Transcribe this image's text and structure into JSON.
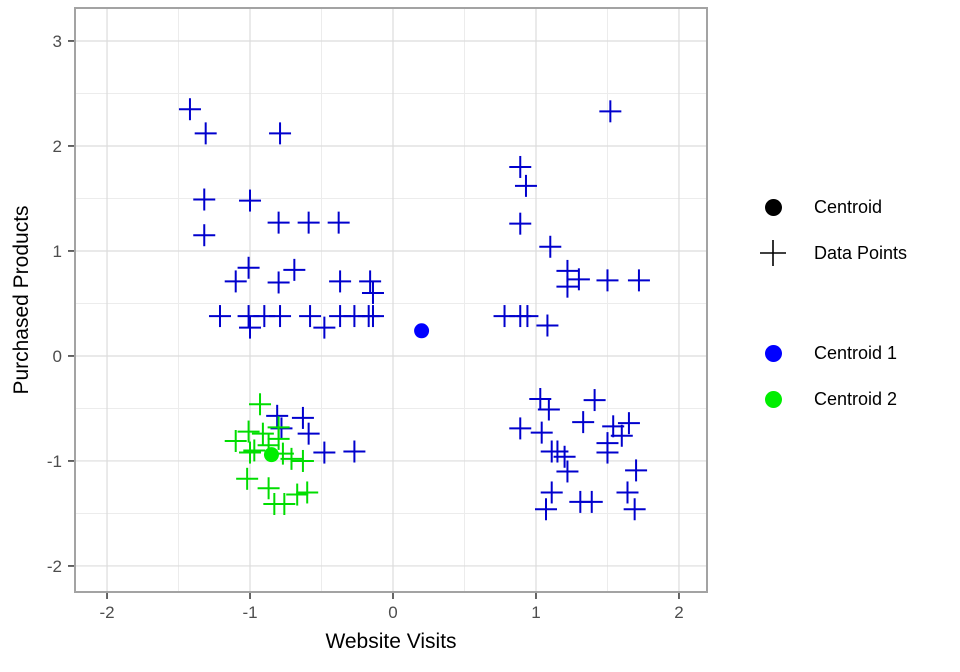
{
  "chart_data": {
    "type": "scatter",
    "title": "",
    "xlabel": "Website Visits",
    "ylabel": "Purchased Products",
    "x_domain": [
      -2.224,
      2.196
    ],
    "y_domain": [
      -2.248,
      3.314
    ],
    "x_major_ticks": [
      -2,
      -1,
      0,
      1,
      2
    ],
    "x_tick_labels": [
      "-2",
      "-1",
      "0",
      "1",
      "2"
    ],
    "x_minor_ticks": [
      -1.5,
      -0.5,
      0.5,
      1.5
    ],
    "y_major_ticks": [
      -2,
      -1,
      0,
      1,
      2,
      3
    ],
    "y_tick_labels": [
      "-2",
      "-1",
      "0",
      "1",
      "2",
      "3"
    ],
    "y_minor_ticks": [
      -1.5,
      -0.5,
      0.5,
      1.5,
      2.5
    ],
    "grid": true,
    "legend_position": "right",
    "colors": {
      "cluster1": "#0000CD",
      "cluster2": "#00DD00",
      "centroid1": "#0000FF",
      "centroid2": "#00EE00",
      "legend_black": "#000000",
      "grid_major": "#DCDCDC",
      "grid_minor": "#ECECEC",
      "panel_border": "#A3A3A3",
      "tick": "#333333",
      "tick_label": "#4D4D4D"
    },
    "series": [
      {
        "name": "Data Points cluster 1",
        "shape": "cross",
        "color_key": "cluster1",
        "points": [
          [
            -1.42,
            2.35
          ],
          [
            -1.31,
            2.12
          ],
          [
            -0.79,
            2.12
          ],
          [
            -1.32,
            1.49
          ],
          [
            -1.0,
            1.48
          ],
          [
            -1.32,
            1.15
          ],
          [
            -0.8,
            1.27
          ],
          [
            -0.59,
            1.27
          ],
          [
            -0.38,
            1.27
          ],
          [
            -1.1,
            0.71
          ],
          [
            -1.01,
            0.84
          ],
          [
            -0.8,
            0.7
          ],
          [
            -0.69,
            0.82
          ],
          [
            -0.37,
            0.71
          ],
          [
            -0.16,
            0.71
          ],
          [
            -0.14,
            0.6
          ],
          [
            -1.21,
            0.38
          ],
          [
            -1.01,
            0.38
          ],
          [
            -1.0,
            0.27
          ],
          [
            -0.9,
            0.38
          ],
          [
            -0.79,
            0.38
          ],
          [
            -0.58,
            0.38
          ],
          [
            -0.48,
            0.27
          ],
          [
            -0.37,
            0.38
          ],
          [
            -0.27,
            0.38
          ],
          [
            -0.17,
            0.38
          ],
          [
            -0.14,
            0.38
          ],
          [
            1.52,
            2.33
          ],
          [
            0.89,
            1.8
          ],
          [
            0.93,
            1.62
          ],
          [
            0.89,
            1.26
          ],
          [
            1.1,
            1.04
          ],
          [
            1.22,
            0.81
          ],
          [
            1.3,
            0.73
          ],
          [
            1.22,
            0.66
          ],
          [
            1.5,
            0.72
          ],
          [
            1.72,
            0.72
          ],
          [
            0.78,
            0.38
          ],
          [
            0.89,
            0.38
          ],
          [
            0.94,
            0.38
          ],
          [
            1.08,
            0.29
          ],
          [
            -0.81,
            -0.57
          ],
          [
            -0.63,
            -0.59
          ],
          [
            -0.78,
            -0.69
          ],
          [
            -0.59,
            -0.74
          ],
          [
            -0.48,
            -0.92
          ],
          [
            -0.27,
            -0.91
          ],
          [
            1.03,
            -0.41
          ],
          [
            1.41,
            -0.42
          ],
          [
            1.09,
            -0.51
          ],
          [
            0.89,
            -0.69
          ],
          [
            1.04,
            -0.73
          ],
          [
            1.33,
            -0.63
          ],
          [
            1.54,
            -0.67
          ],
          [
            1.65,
            -0.64
          ],
          [
            1.6,
            -0.76
          ],
          [
            1.5,
            -0.83
          ],
          [
            1.5,
            -0.92
          ],
          [
            1.11,
            -0.91
          ],
          [
            1.15,
            -0.91
          ],
          [
            1.2,
            -0.96
          ],
          [
            1.22,
            -1.1
          ],
          [
            1.7,
            -1.09
          ],
          [
            1.11,
            -1.3
          ],
          [
            1.64,
            -1.3
          ],
          [
            1.31,
            -1.39
          ],
          [
            1.39,
            -1.39
          ],
          [
            1.07,
            -1.46
          ],
          [
            1.69,
            -1.46
          ]
        ]
      },
      {
        "name": "Data Points cluster 2",
        "shape": "cross",
        "color_key": "cluster2",
        "points": [
          [
            -0.93,
            -0.46
          ],
          [
            -1.01,
            -0.72
          ],
          [
            -0.91,
            -0.74
          ],
          [
            -1.1,
            -0.81
          ],
          [
            -0.8,
            -0.68
          ],
          [
            -0.8,
            -0.79
          ],
          [
            -0.87,
            -0.85
          ],
          [
            -0.97,
            -0.9
          ],
          [
            -1.0,
            -0.92
          ],
          [
            -0.77,
            -0.93
          ],
          [
            -0.71,
            -0.98
          ],
          [
            -0.63,
            -1.0
          ],
          [
            -1.02,
            -1.17
          ],
          [
            -0.87,
            -1.26
          ],
          [
            -0.67,
            -1.32
          ],
          [
            -0.6,
            -1.3
          ],
          [
            -0.83,
            -1.41
          ],
          [
            -0.76,
            -1.41
          ]
        ]
      },
      {
        "name": "Centroid 1",
        "shape": "dot",
        "color_key": "centroid1",
        "points": [
          [
            0.2,
            0.24
          ]
        ]
      },
      {
        "name": "Centroid 2",
        "shape": "dot",
        "color_key": "centroid2",
        "points": [
          [
            -0.85,
            -0.94
          ]
        ]
      }
    ],
    "legend_groups": [
      {
        "items": [
          {
            "label": "Centroid",
            "shape": "dot",
            "color": "#000000"
          },
          {
            "label": "Data Points",
            "shape": "cross",
            "color": "#000000"
          }
        ]
      },
      {
        "items": [
          {
            "label": "Centroid 1",
            "shape": "dot",
            "color": "#0000FF"
          },
          {
            "label": "Centroid 2",
            "shape": "dot",
            "color": "#00EE00"
          }
        ]
      }
    ]
  }
}
